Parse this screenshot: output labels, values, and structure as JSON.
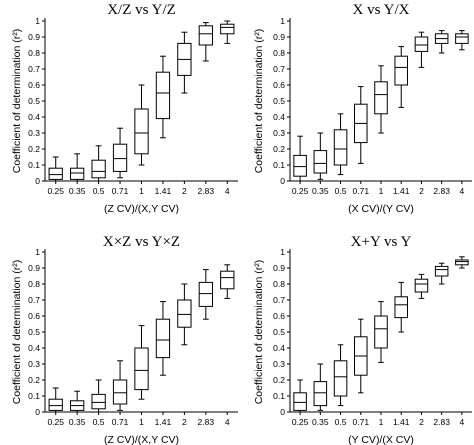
{
  "chart_data": [
    {
      "type": "boxplot",
      "title": "X/Z vs Y/Z",
      "xlabel": "(Z CV)/(X,Y CV)",
      "ylabel": "Coefficient of determination (r²)",
      "ylim": [
        0,
        1
      ],
      "yticks": [
        "0",
        "0.1",
        "0.2",
        "0.3",
        "0.4",
        "0.5",
        "0.6",
        "0.7",
        "0.8",
        "0.9",
        "1"
      ],
      "categories": [
        "0.25",
        "0.35",
        "0.5",
        "0.71",
        "1",
        "1.41",
        "2",
        "2.83",
        "4"
      ],
      "boxes": [
        {
          "min": 0,
          "q1": 0.01,
          "median": 0.04,
          "q3": 0.08,
          "max": 0.15
        },
        {
          "min": 0,
          "q1": 0.01,
          "median": 0.05,
          "q3": 0.08,
          "max": 0.17
        },
        {
          "min": 0,
          "q1": 0.02,
          "median": 0.06,
          "q3": 0.13,
          "max": 0.22
        },
        {
          "min": 0.02,
          "q1": 0.06,
          "median": 0.14,
          "q3": 0.23,
          "max": 0.33
        },
        {
          "min": 0.1,
          "q1": 0.17,
          "median": 0.3,
          "q3": 0.45,
          "max": 0.6
        },
        {
          "min": 0.27,
          "q1": 0.39,
          "median": 0.55,
          "q3": 0.68,
          "max": 0.78
        },
        {
          "min": 0.55,
          "q1": 0.66,
          "median": 0.76,
          "q3": 0.86,
          "max": 0.93
        },
        {
          "min": 0.75,
          "q1": 0.85,
          "median": 0.92,
          "q3": 0.97,
          "max": 0.99
        },
        {
          "min": 0.86,
          "q1": 0.92,
          "median": 0.96,
          "q3": 0.98,
          "max": 1
        }
      ]
    },
    {
      "type": "boxplot",
      "title": "X vs Y/X",
      "xlabel": "(X CV)/(Y CV)",
      "ylabel": "Coefficient of determination (r²)",
      "ylim": [
        0,
        1
      ],
      "yticks": [
        "0",
        "0.1",
        "0.2",
        "0.3",
        "0.4",
        "0.5",
        "0.6",
        "0.7",
        "0.8",
        "0.9",
        "1"
      ],
      "categories": [
        "0.25",
        "0.35",
        "0.5",
        "0.71",
        "1",
        "1.41",
        "2",
        "2.83",
        "4"
      ],
      "boxes": [
        {
          "min": 0,
          "q1": 0.03,
          "median": 0.09,
          "q3": 0.16,
          "max": 0.28
        },
        {
          "min": 0.01,
          "q1": 0.05,
          "median": 0.11,
          "q3": 0.19,
          "max": 0.3
        },
        {
          "min": 0.04,
          "q1": 0.1,
          "median": 0.2,
          "q3": 0.32,
          "max": 0.42
        },
        {
          "min": 0.11,
          "q1": 0.24,
          "median": 0.36,
          "q3": 0.48,
          "max": 0.59
        },
        {
          "min": 0.3,
          "q1": 0.42,
          "median": 0.54,
          "q3": 0.62,
          "max": 0.72
        },
        {
          "min": 0.46,
          "q1": 0.6,
          "median": 0.71,
          "q3": 0.78,
          "max": 0.84
        },
        {
          "min": 0.71,
          "q1": 0.81,
          "median": 0.85,
          "q3": 0.9,
          "max": 0.93
        },
        {
          "min": 0.8,
          "q1": 0.86,
          "median": 0.89,
          "q3": 0.92,
          "max": 0.94
        },
        {
          "min": 0.82,
          "q1": 0.86,
          "median": 0.9,
          "q3": 0.92,
          "max": 0.94
        }
      ]
    },
    {
      "type": "boxplot",
      "title": "X×Z vs Y×Z",
      "xlabel": "(Z CV)/(X,Y CV)",
      "ylabel": "Coefficient of determination (r²)",
      "ylim": [
        0,
        1
      ],
      "yticks": [
        "0",
        "0.1",
        "0.2",
        "0.3",
        "0.4",
        "0.5",
        "0.6",
        "0.7",
        "0.8",
        "0.9",
        "1"
      ],
      "categories": [
        "0.25",
        "0.35",
        "0.5",
        "0.71",
        "1",
        "1.41",
        "2",
        "2.83",
        "4"
      ],
      "boxes": [
        {
          "min": 0,
          "q1": 0.01,
          "median": 0.04,
          "q3": 0.08,
          "max": 0.15
        },
        {
          "min": 0,
          "q1": 0.01,
          "median": 0.04,
          "q3": 0.07,
          "max": 0.13
        },
        {
          "min": 0,
          "q1": 0.02,
          "median": 0.06,
          "q3": 0.11,
          "max": 0.2
        },
        {
          "min": 0.01,
          "q1": 0.05,
          "median": 0.12,
          "q3": 0.2,
          "max": 0.32
        },
        {
          "min": 0.08,
          "q1": 0.14,
          "median": 0.26,
          "q3": 0.4,
          "max": 0.54
        },
        {
          "min": 0.23,
          "q1": 0.34,
          "median": 0.45,
          "q3": 0.58,
          "max": 0.69
        },
        {
          "min": 0.42,
          "q1": 0.53,
          "median": 0.61,
          "q3": 0.7,
          "max": 0.8
        },
        {
          "min": 0.58,
          "q1": 0.66,
          "median": 0.74,
          "q3": 0.81,
          "max": 0.89
        },
        {
          "min": 0.71,
          "q1": 0.77,
          "median": 0.84,
          "q3": 0.88,
          "max": 0.92
        }
      ]
    },
    {
      "type": "boxplot",
      "title": "X+Y vs Y",
      "xlabel": "(Y CV)/(X CV)",
      "ylabel": "Coefficient of determination (r²)",
      "ylim": [
        0,
        1
      ],
      "yticks": [
        "0",
        "0.1",
        "0.2",
        "0.3",
        "0.4",
        "0.5",
        "0.6",
        "0.7",
        "0.8",
        "0.9",
        "1"
      ],
      "categories": [
        "0.25",
        "0.35",
        "0.5",
        "0.71",
        "1",
        "1.41",
        "2",
        "2.83",
        "4"
      ],
      "boxes": [
        {
          "min": 0,
          "q1": 0.01,
          "median": 0.06,
          "q3": 0.12,
          "max": 0.2
        },
        {
          "min": 0.01,
          "q1": 0.04,
          "median": 0.12,
          "q3": 0.19,
          "max": 0.3
        },
        {
          "min": 0.04,
          "q1": 0.1,
          "median": 0.22,
          "q3": 0.32,
          "max": 0.42
        },
        {
          "min": 0.12,
          "q1": 0.23,
          "median": 0.35,
          "q3": 0.47,
          "max": 0.58
        },
        {
          "min": 0.31,
          "q1": 0.4,
          "median": 0.52,
          "q3": 0.6,
          "max": 0.69
        },
        {
          "min": 0.5,
          "q1": 0.59,
          "median": 0.67,
          "q3": 0.72,
          "max": 0.81
        },
        {
          "min": 0.71,
          "q1": 0.75,
          "median": 0.8,
          "q3": 0.83,
          "max": 0.86
        },
        {
          "min": 0.8,
          "q1": 0.85,
          "median": 0.89,
          "q3": 0.91,
          "max": 0.93
        },
        {
          "min": 0.9,
          "q1": 0.92,
          "median": 0.94,
          "q3": 0.95,
          "max": 0.97
        }
      ]
    }
  ]
}
